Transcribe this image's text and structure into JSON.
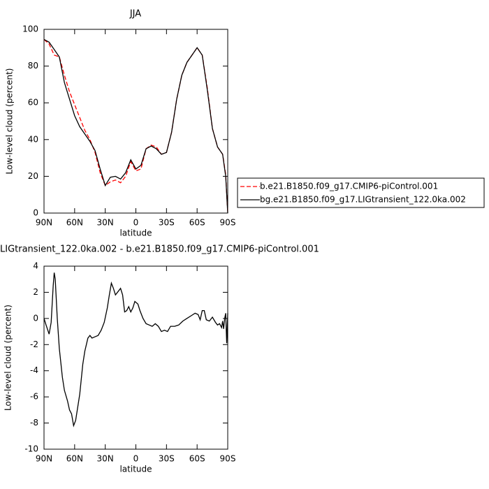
{
  "chart_data": [
    {
      "type": "line",
      "title": "JJA",
      "x_label": "latitude",
      "y_label": "Low-level cloud (percent)",
      "xlim": [
        90,
        -90
      ],
      "xticks": [
        {
          "value": 90,
          "label": "90N"
        },
        {
          "value": 60,
          "label": "60N"
        },
        {
          "value": 30,
          "label": "30N"
        },
        0,
        {
          "value": -30,
          "label": "30S"
        },
        {
          "value": -60,
          "label": "60S"
        },
        {
          "value": -90,
          "label": "90S"
        }
      ],
      "ylim": [
        0,
        100
      ],
      "yticks": [
        0,
        20,
        40,
        60,
        80,
        100
      ],
      "legend": "right",
      "x": [
        90,
        85,
        80,
        75,
        70,
        65,
        60,
        55,
        50,
        45,
        40,
        35,
        30,
        25,
        20,
        15,
        10,
        5,
        0,
        -5,
        -10,
        -15,
        -20,
        -25,
        -30,
        -35,
        -40,
        -45,
        -50,
        -55,
        -60,
        -65,
        -70,
        -75,
        -80,
        -85,
        -88,
        -90
      ],
      "series": [
        {
          "name": "b.e21.B1850.f09_g17.CMIP6-piControl.001",
          "color": "#ff0000",
          "linestyle": "dashed",
          "values": [
            94.5,
            92,
            86,
            85,
            75,
            66,
            59,
            52,
            45,
            40,
            33,
            22,
            15,
            17,
            18,
            16.5,
            20,
            28,
            23,
            24,
            35,
            37,
            36,
            32,
            33,
            44,
            62,
            75,
            82,
            86,
            90,
            86,
            68,
            46,
            36,
            32,
            21,
            0
          ]
        },
        {
          "name": "bg.e21.B1850.f09_g17.LIGtransient_122.0ka.002",
          "color": "#000000",
          "linestyle": "solid",
          "values": [
            94.5,
            93,
            89,
            85,
            71,
            62,
            53,
            47,
            43,
            39,
            34,
            24,
            15,
            19.5,
            20,
            18.5,
            22,
            29,
            24,
            26,
            35,
            36.5,
            35,
            32,
            33,
            44,
            62,
            75,
            82,
            86,
            90,
            86,
            67,
            46,
            36,
            32,
            20,
            0
          ]
        }
      ]
    },
    {
      "type": "line",
      "title": "LIGtransient_122.0ka.002 - b.e21.B1850.f09_g17.CMIP6-piControl.001",
      "x_label": "latitude",
      "y_label": "Low-level cloud (percent)",
      "xlim": [
        90,
        -90
      ],
      "xticks": [
        {
          "value": 90,
          "label": "90N"
        },
        {
          "value": 60,
          "label": "60N"
        },
        {
          "value": 30,
          "label": "30N"
        },
        0,
        {
          "value": -30,
          "label": "30S"
        },
        {
          "value": -60,
          "label": "60S"
        },
        {
          "value": -90,
          "label": "90S"
        }
      ],
      "ylim": [
        -10,
        4
      ],
      "yticks": [
        -10,
        -8,
        -6,
        -4,
        -2,
        0,
        2,
        4
      ],
      "x": [
        90,
        88,
        85,
        83,
        81,
        80,
        79,
        77,
        75,
        72,
        70,
        67,
        65,
        63,
        61,
        59,
        57,
        55,
        52,
        50,
        47,
        45,
        43,
        40,
        37,
        34,
        31,
        28,
        26,
        24,
        22,
        20,
        17,
        15,
        13,
        11,
        9,
        7,
        5,
        3,
        1,
        -2,
        -4,
        -7,
        -10,
        -13,
        -16,
        -19,
        -22,
        -25,
        -28,
        -31,
        -34,
        -38,
        -42,
        -46,
        -50,
        -54,
        -58,
        -61,
        -63,
        -65,
        -67,
        -69,
        -72,
        -75,
        -78,
        -80,
        -82,
        -84,
        -85,
        -86,
        -87,
        -88,
        -89,
        -90
      ],
      "series": [
        {
          "color": "#000000",
          "linestyle": "solid",
          "values": [
            0,
            -0.5,
            -1.2,
            -0.3,
            2.5,
            3.5,
            3.0,
            0,
            -2.3,
            -4.5,
            -5.5,
            -6.3,
            -7,
            -7.3,
            -8.2,
            -7.8,
            -6.8,
            -5.8,
            -3.5,
            -2.5,
            -1.5,
            -1.3,
            -1.5,
            -1.4,
            -1.3,
            -0.9,
            -0.3,
            0.8,
            1.8,
            2.7,
            2.3,
            1.8,
            2.1,
            2.3,
            1.8,
            0.5,
            0.6,
            0.9,
            0.5,
            0.8,
            1.3,
            1.1,
            0.6,
            0,
            -0.4,
            -0.5,
            -0.6,
            -0.4,
            -0.6,
            -1,
            -0.9,
            -1,
            -0.6,
            -0.6,
            -0.5,
            -0.2,
            0,
            0.2,
            0.4,
            0.3,
            -0.1,
            0.6,
            0.6,
            -0.1,
            -0.2,
            0.1,
            -0.3,
            -0.5,
            -0.4,
            -0.7,
            -0.2,
            -0.8,
            0,
            0.4,
            -1.9,
            0.4
          ]
        }
      ]
    }
  ]
}
